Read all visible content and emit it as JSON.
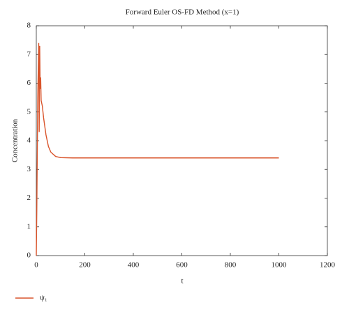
{
  "chart_data": {
    "type": "line",
    "title": "Forward Euler OS-FD Method (x=1)",
    "x_label": "t",
    "y_label": "Concentration",
    "x": [
      0,
      2,
      4,
      6,
      8,
      10,
      12,
      14,
      16,
      18,
      20,
      25,
      30,
      40,
      50,
      60,
      80,
      100,
      150,
      1000
    ],
    "series": [
      {
        "name": "ψ₁",
        "color": "#d9542b",
        "values": [
          0,
          1.5,
          3.5,
          5.5,
          6.5,
          7.4,
          4.3,
          7.3,
          5.8,
          6.2,
          5.4,
          5.2,
          4.8,
          4.2,
          3.8,
          3.6,
          3.45,
          3.41,
          3.4,
          3.4
        ]
      }
    ],
    "xlim": [
      0,
      1200
    ],
    "xticks": [
      0,
      200,
      400,
      600,
      800,
      1000,
      1200
    ],
    "ylim": [
      0,
      8
    ],
    "yticks": [
      0,
      1,
      2,
      3,
      4,
      5,
      6,
      7,
      8
    ],
    "grid": false,
    "legend": "bottom-left"
  }
}
